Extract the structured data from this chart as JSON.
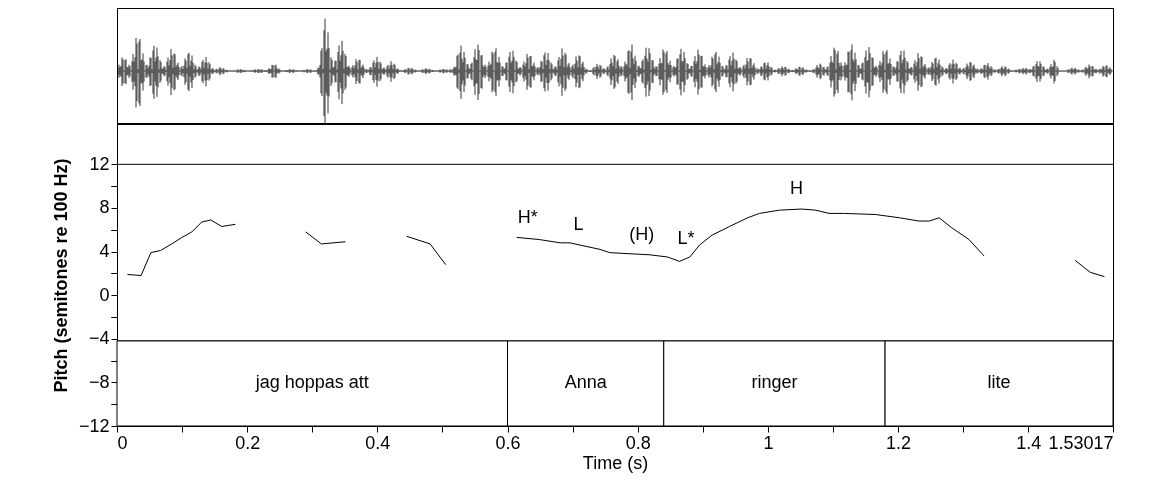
{
  "chart_data": {
    "type": "line",
    "xlabel": "Time (s)",
    "ylabel": "Pitch (semitones re 100 Hz)",
    "series": [
      {
        "color": "#000000",
        "x": [
          0.016,
          0.037,
          0.052,
          0.067,
          0.084,
          0.1,
          0.115,
          0.13,
          0.144,
          0.161,
          0.182,
          0.236,
          0.29,
          0.314,
          0.351,
          0.398,
          0.445,
          0.481,
          0.505,
          0.56,
          0.614,
          0.649,
          0.681,
          0.696,
          0.711,
          0.742,
          0.757,
          0.788,
          0.819,
          0.846,
          0.864,
          0.88,
          0.895,
          0.914,
          0.941,
          0.969,
          0.987,
          1.018,
          1.052,
          1.073,
          1.094,
          1.116,
          1.165,
          1.202,
          1.232,
          1.248,
          1.263,
          1.282,
          1.309,
          1.332,
          1.4,
          1.472,
          1.495,
          1.517
        ],
        "values": [
          1.9,
          1.8,
          3.9,
          4.1,
          4.7,
          5.3,
          5.8,
          6.7,
          6.9,
          6.3,
          6.5,
          null,
          5.8,
          4.7,
          4.9,
          null,
          5.4,
          4.7,
          2.8,
          null,
          5.3,
          5.1,
          4.8,
          4.8,
          4.6,
          4.2,
          3.9,
          3.8,
          3.7,
          3.5,
          3.1,
          3.5,
          4.6,
          5.5,
          6.3,
          7.1,
          7.5,
          7.8,
          7.9,
          7.8,
          7.5,
          7.5,
          7.4,
          7.1,
          6.8,
          6.8,
          7.1,
          6.2,
          5.1,
          3.6,
          null,
          3.2,
          2.1,
          1.7
        ]
      }
    ],
    "xlim": [
      0,
      1.53017
    ],
    "xticks": [
      0,
      {
        "value": 0.1,
        "label": null
      },
      0.2,
      {
        "value": 0.3,
        "label": null
      },
      0.4,
      {
        "value": 0.5,
        "label": null
      },
      0.6,
      {
        "value": 0.7,
        "label": null
      },
      0.8,
      {
        "value": 0.9,
        "label": null
      },
      1,
      {
        "value": 1.1,
        "label": null
      },
      1.2,
      {
        "value": 1.3,
        "label": null
      },
      1.4,
      1.53017
    ],
    "ylim": [
      -12,
      15.7
    ],
    "yticks": [
      -12,
      {
        "value": -10,
        "label": null
      },
      -8,
      {
        "value": -6,
        "label": null
      },
      -4,
      {
        "value": -2,
        "label": null
      },
      0,
      {
        "value": 2,
        "label": null
      },
      4,
      {
        "value": 6,
        "label": null
      },
      8,
      {
        "value": 10,
        "label": null
      },
      12
    ],
    "ref_lines": [
      {
        "axis": "y",
        "value": 12
      },
      {
        "axis": "y",
        "value": -4.2
      }
    ],
    "bands": [
      {
        "axis": "x",
        "from": 0,
        "to": 0.6,
        "label": "jag hoppas att",
        "color": "#ffffff"
      },
      {
        "axis": "x",
        "from": 0.6,
        "to": 0.84,
        "label": "Anna",
        "color": "#ffffff"
      },
      {
        "axis": "x",
        "from": 0.84,
        "to": 1.18,
        "label": "ringer",
        "color": "#ffffff"
      },
      {
        "axis": "x",
        "from": 1.18,
        "to": 1.53017,
        "label": "lite",
        "color": "#ffffff"
      }
    ],
    "annotations": [
      {
        "text": "H*",
        "x": 0.631,
        "y": 5.2
      },
      {
        "text": "L",
        "x": 0.709,
        "y": 4.6
      },
      {
        "text": "(H)",
        "x": 0.806,
        "y": 3.7
      },
      {
        "text": "L*",
        "x": 0.874,
        "y": 3.3
      },
      {
        "text": "H",
        "x": 1.044,
        "y": 7.9
      }
    ],
    "grid": false,
    "marker": "none",
    "line_style": "solid"
  }
}
